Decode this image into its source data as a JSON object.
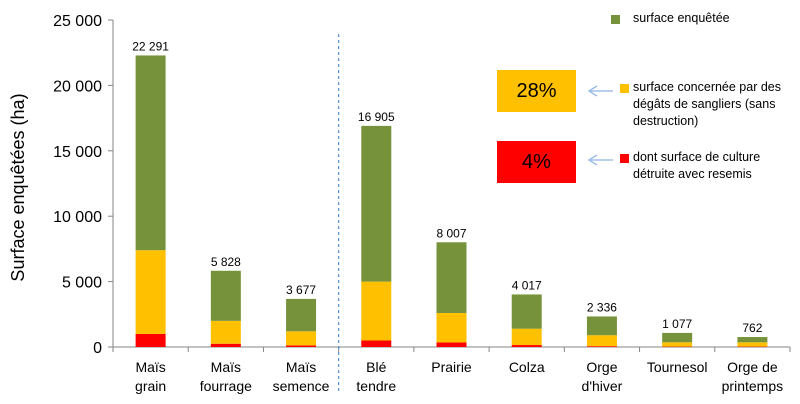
{
  "chart_data": {
    "type": "bar",
    "stacked": true,
    "ylabel": "Surface enquêtées (ha)",
    "xlabel": "",
    "ylim": [
      0,
      25000
    ],
    "yticks": [
      0,
      5000,
      10000,
      15000,
      20000,
      25000
    ],
    "ytick_labels": [
      "0",
      "5 000",
      "10 000",
      "15 000",
      "20 000",
      "25 000"
    ],
    "grid": false,
    "categories": [
      [
        "Maïs",
        "grain"
      ],
      [
        "Maïs",
        "fourrage"
      ],
      [
        "Maïs",
        "semence"
      ],
      [
        "Blé",
        "tendre"
      ],
      [
        "Prairie"
      ],
      [
        "Colza"
      ],
      [
        "Orge",
        "d'hiver"
      ],
      [
        "Tournesol"
      ],
      [
        "Orge de",
        "printemps"
      ]
    ],
    "totals": [
      22291,
      5828,
      3677,
      16905,
      8007,
      4017,
      2336,
      1077,
      762
    ],
    "total_labels": [
      "22 291",
      "5 828",
      "3 677",
      "16 905",
      "8 007",
      "4 017",
      "2 336",
      "1 077",
      "762"
    ],
    "series": [
      {
        "name": "dont surface de culture détruite avec resemis",
        "color": "#ff0000",
        "values": [
          1000,
          250,
          120,
          500,
          350,
          150,
          60,
          30,
          30
        ]
      },
      {
        "name": "surface concernée par des dégâts de sangliers (sans destruction)",
        "color": "#ffc000",
        "values": [
          6400,
          1750,
          1080,
          4500,
          2250,
          1250,
          840,
          330,
          330
        ]
      },
      {
        "name": "surface enquêtée",
        "color": "#76933c",
        "values": [
          14891,
          3828,
          2477,
          11905,
          5407,
          2617,
          1436,
          717,
          402
        ]
      }
    ],
    "separator_after_category_index": 2,
    "legend_position": "right"
  },
  "legend": {
    "items": [
      {
        "label_lines": [
          "surface enquêtée"
        ],
        "color": "#76933c"
      },
      {
        "label_lines": [
          "surface concernée par des",
          "dégâts de sangliers (sans",
          "destruction)"
        ],
        "color": "#ffc000"
      },
      {
        "label_lines": [
          "dont surface de culture",
          "détruite avec resemis"
        ],
        "color": "#ff0000"
      }
    ]
  },
  "callouts": [
    {
      "text": "28%",
      "color": "#ffc000"
    },
    {
      "text": "4%",
      "color": "#ff0000"
    }
  ]
}
